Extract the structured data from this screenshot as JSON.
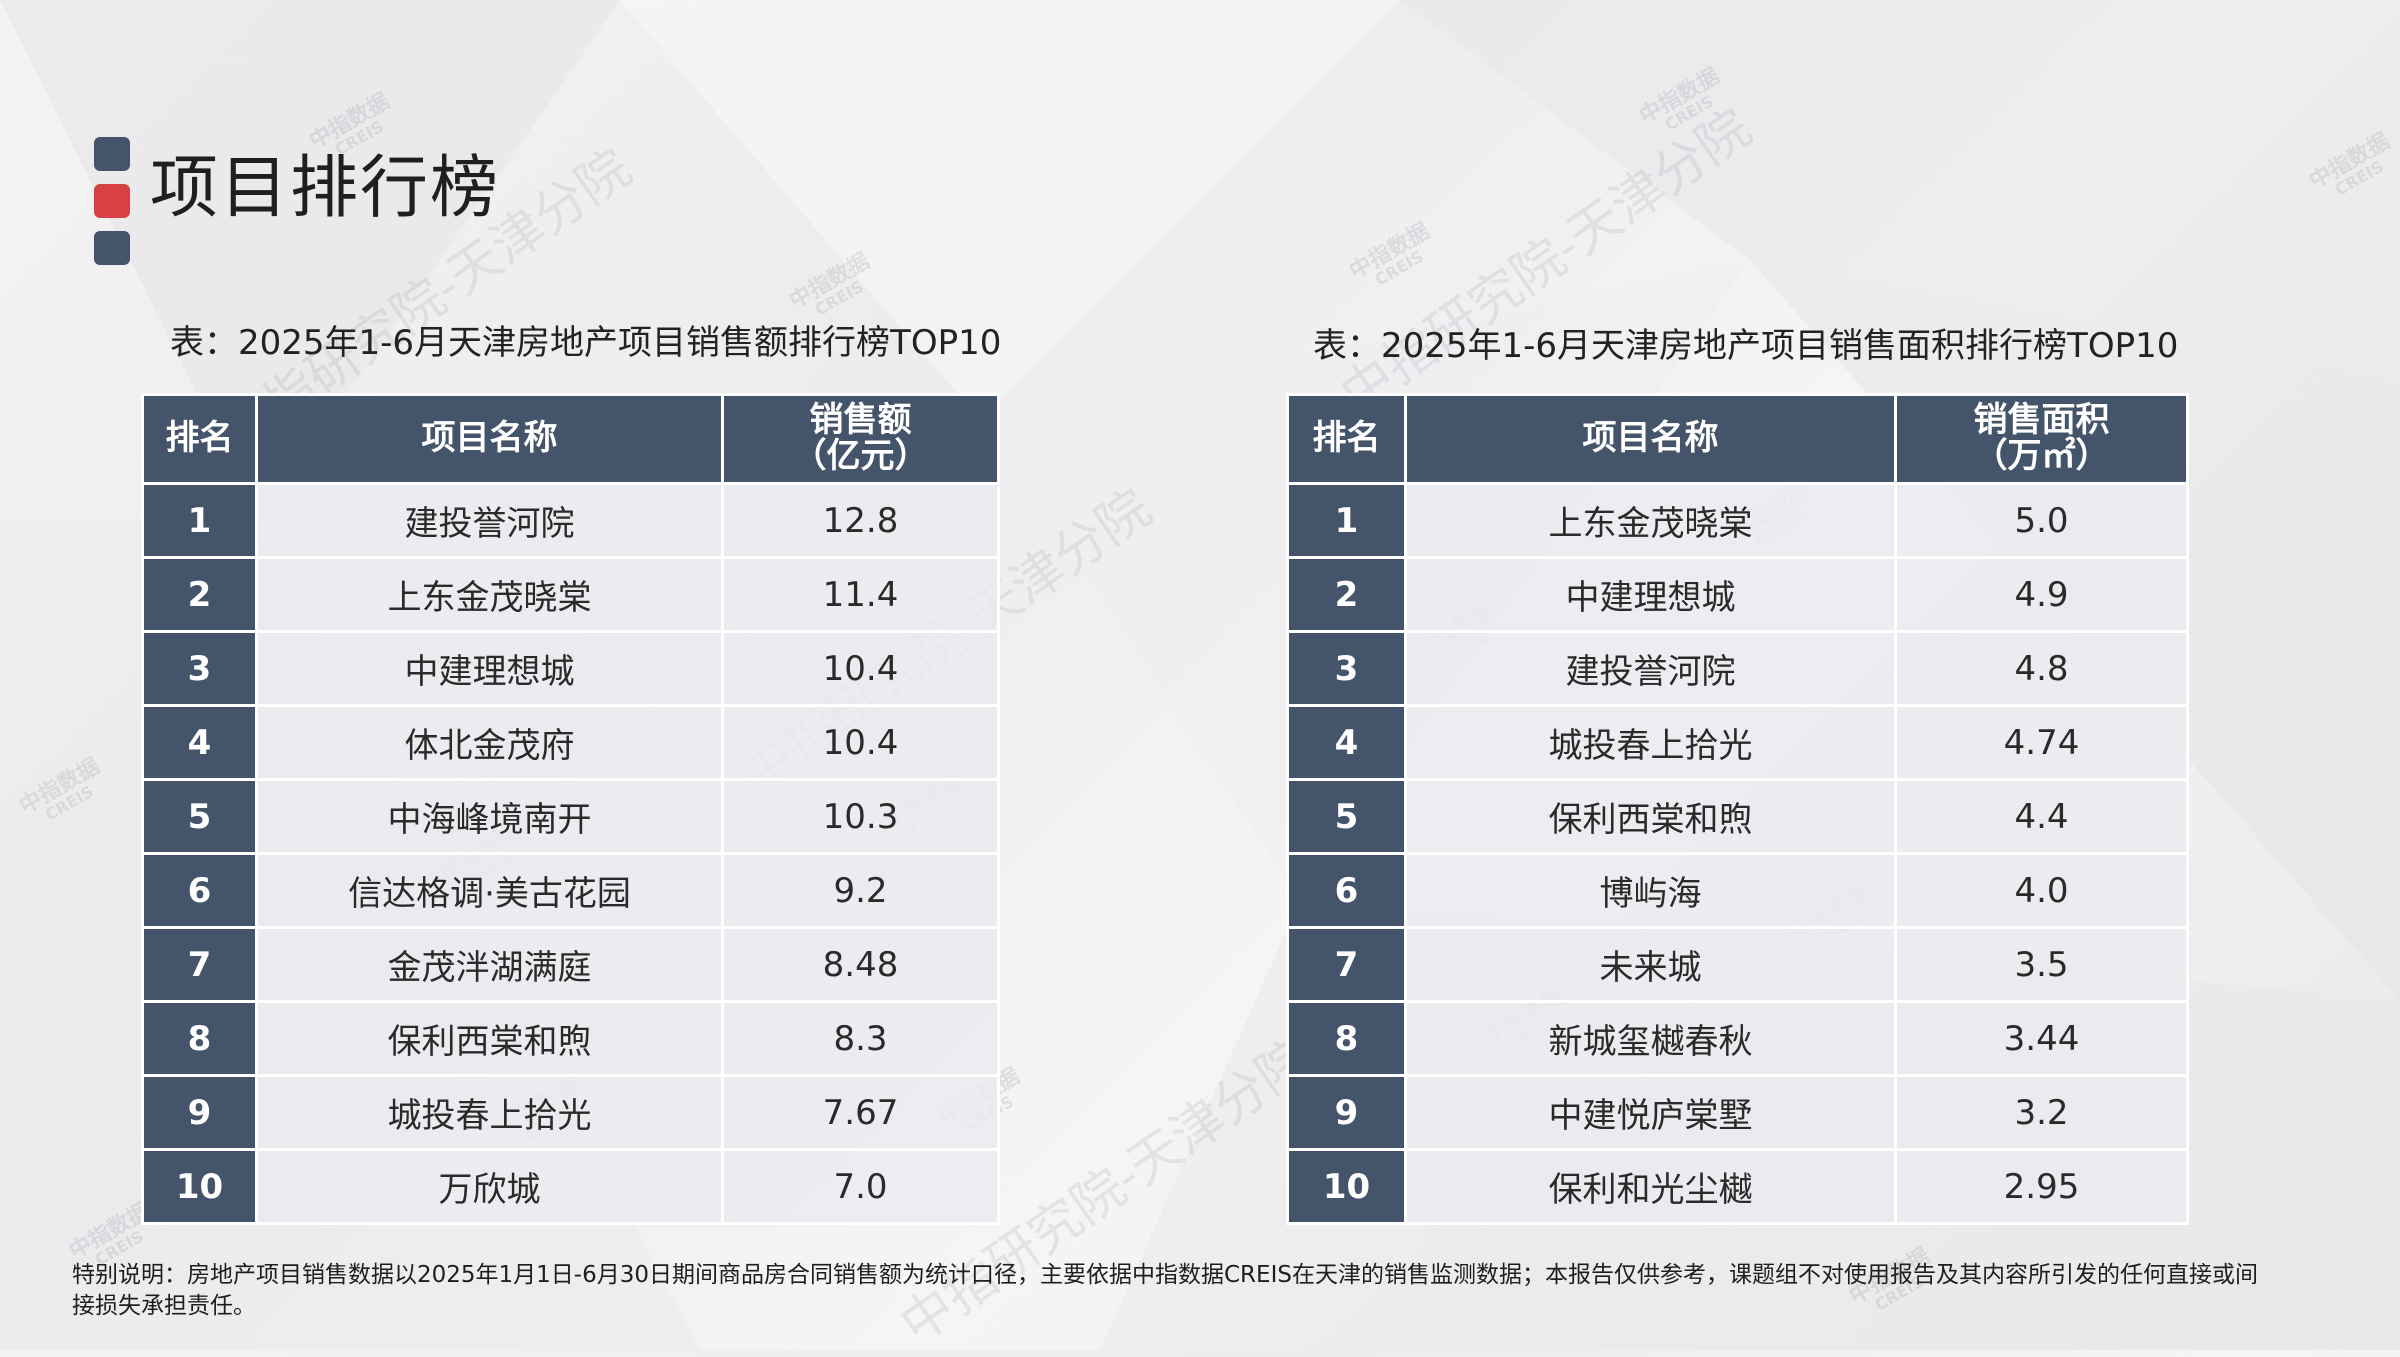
{
  "page_title": "项目排行榜",
  "title_deco_colors": [
    "#44546a",
    "#d94045",
    "#44546a"
  ],
  "left_table": {
    "caption": "表：2025年1-6月天津房地产项目销售额排行榜TOP10",
    "headers": [
      "排名",
      "项目名称",
      "销售额\n（亿元）"
    ],
    "rows": [
      [
        "1",
        "建投誉河院",
        "12.8"
      ],
      [
        "2",
        "上东金茂晓棠",
        "11.4"
      ],
      [
        "3",
        "中建理想城",
        "10.4"
      ],
      [
        "4",
        "体北金茂府",
        "10.4"
      ],
      [
        "5",
        "中海峰境南开",
        "10.3"
      ],
      [
        "6",
        "信达格调·美古花园",
        "9.2"
      ],
      [
        "7",
        "金茂泮湖满庭",
        "8.48"
      ],
      [
        "8",
        "保利西棠和煦",
        "8.3"
      ],
      [
        "9",
        "城投春上拾光",
        "7.67"
      ],
      [
        "10",
        "万欣城",
        "7.0"
      ]
    ]
  },
  "right_table": {
    "caption": "表：2025年1-6月天津房地产项目销售面积排行榜TOP10",
    "headers": [
      "排名",
      "项目名称",
      "销售面积\n（万㎡）"
    ],
    "rows": [
      [
        "1",
        "上东金茂晓棠",
        "5.0"
      ],
      [
        "2",
        "中建理想城",
        "4.9"
      ],
      [
        "3",
        "建投誉河院",
        "4.8"
      ],
      [
        "4",
        "城投春上拾光",
        "4.74"
      ],
      [
        "5",
        "保利西棠和煦",
        "4.4"
      ],
      [
        "6",
        "博屿海",
        "4.0"
      ],
      [
        "7",
        "未来城",
        "3.5"
      ],
      [
        "8",
        "新城玺樾春秋",
        "3.44"
      ],
      [
        "9",
        "中建悦庐棠墅",
        "3.2"
      ],
      [
        "10",
        "保利和光尘樾",
        "2.95"
      ]
    ]
  },
  "footnote": "特别说明：房地产项目销售数据以2025年1月1日-6月30日期间商品房合同销售额为统计口径，主要依据中指数据CREIS在天津的销售监测数据；本报告仅供参考，课题组不对使用报告及其内容所引发的任何直接或间接损失承担责任。",
  "watermark": {
    "brand": "中指数据",
    "brand_en": "CREIS",
    "institute": "中指研究院-天津分院"
  }
}
